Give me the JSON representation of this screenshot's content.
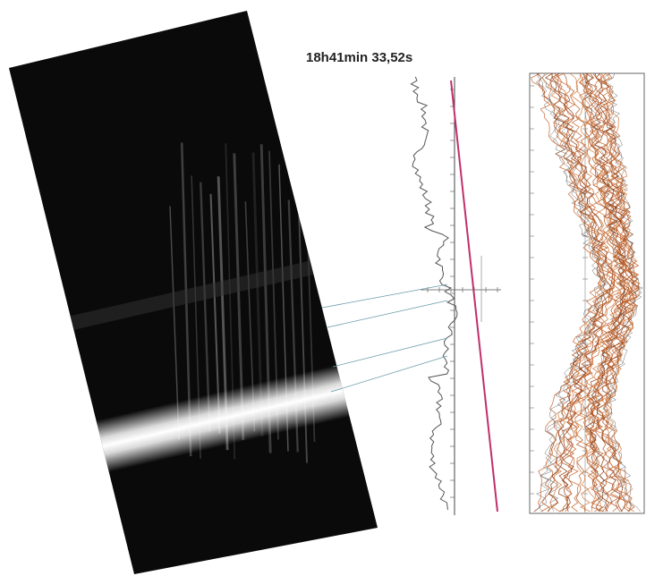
{
  "title": "18h41min 33,52s"
}
